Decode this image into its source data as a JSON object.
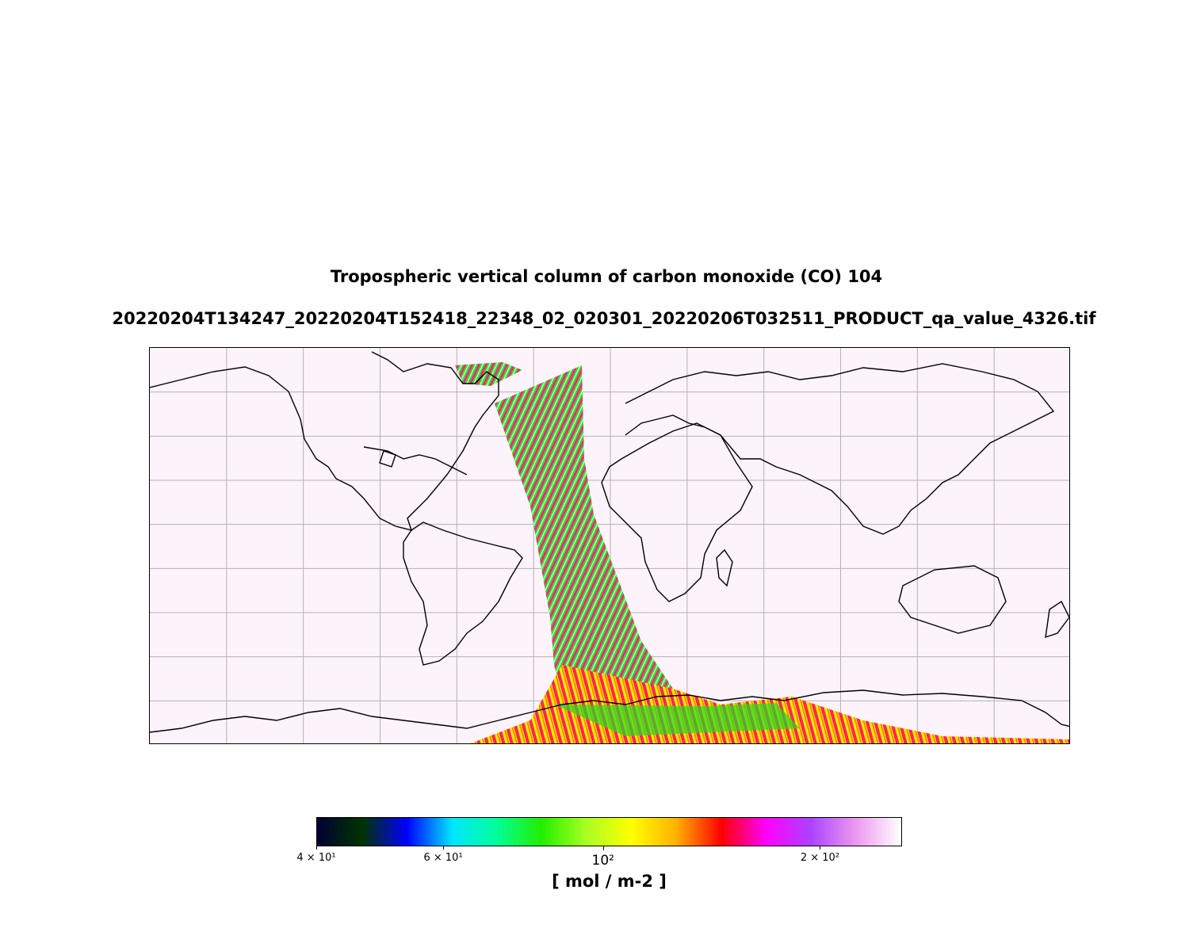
{
  "title_line1": "Tropospheric vertical column of carbon monoxide (CO) 104",
  "title_line2": "20220204T134247_20220204T152418_22348_02_020301_20220206T032511_PRODUCT_qa_value_4326.tif",
  "map": {
    "projection": "plate carree",
    "lon_range": [
      -180,
      180
    ],
    "lat_range": [
      -90,
      90
    ],
    "gridlines": true,
    "background_color": "#fdf3fb",
    "coastline_color": "#000000"
  },
  "colorbar": {
    "label": "[ mol / m-2 ]",
    "scale": "log",
    "range": [
      40,
      260
    ],
    "ticks": [
      {
        "value": 40,
        "text": "4 × 10¹",
        "major": false
      },
      {
        "value": 60,
        "text": "6 × 10¹",
        "major": false
      },
      {
        "value": 100,
        "text": "10²",
        "major": true
      },
      {
        "value": 200,
        "text": "2 × 10²",
        "major": false
      }
    ],
    "colors": [
      "#000033",
      "#003300",
      "#0000ff",
      "#00e5ff",
      "#00ff99",
      "#22ee00",
      "#aaff22",
      "#ffff00",
      "#ffb000",
      "#ff0000",
      "#ff00ff",
      "#aa44ff",
      "#ee99ee",
      "#ffffff"
    ]
  }
}
